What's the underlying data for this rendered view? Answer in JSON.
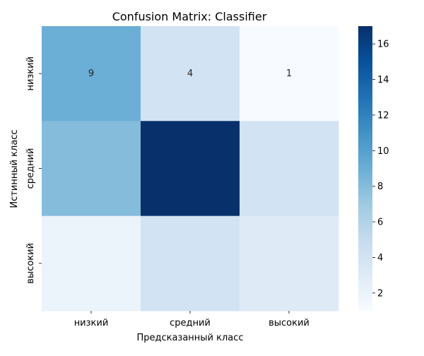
{
  "chart_data": {
    "type": "heatmap",
    "title": "Confusion Matrix: Classifier",
    "xlabel": "Предсказанный класс",
    "ylabel": "Истинный класс",
    "x_categories": [
      "низкий",
      "средний",
      "высокий"
    ],
    "y_categories": [
      "низкий",
      "средний",
      "высокий"
    ],
    "values": [
      [
        9,
        4,
        1
      ],
      [
        8,
        17,
        4
      ],
      [
        2,
        4,
        3
      ]
    ],
    "annotations": [
      [
        "9",
        "4",
        "1"
      ],
      [
        "",
        "",
        ""
      ],
      [
        "",
        "",
        ""
      ]
    ],
    "colormap": "Blues",
    "vmin": 1,
    "vmax": 17,
    "colorbar_ticks": [
      2,
      4,
      6,
      8,
      10,
      12,
      14,
      16
    ]
  }
}
